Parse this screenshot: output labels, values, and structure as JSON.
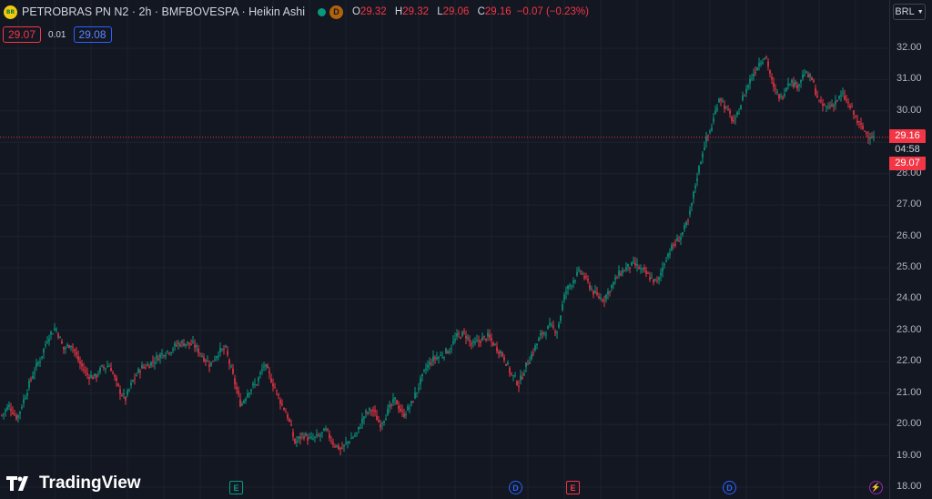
{
  "header": {
    "symbol_line": "PETROBRAS PN N2 · 2h · BMFBOVESPA · Heikin Ashi",
    "logo_text": "BR",
    "badge_letter": "D",
    "o_label": "O",
    "o_value": "29.32",
    "h_label": "H",
    "h_value": "29.32",
    "l_label": "L",
    "l_value": "29.06",
    "c_label": "C",
    "c_value": "29.16",
    "change": "−0.07 (−0.23%)"
  },
  "quote": {
    "bid": "29.07",
    "spread": "0.01",
    "ask": "29.08"
  },
  "currency": "BRL",
  "price_axis": {
    "ticks": [
      "32.00",
      "31.00",
      "30.00",
      "29.00",
      "28.00",
      "27.00",
      "26.00",
      "25.00",
      "24.00",
      "23.00",
      "22.00",
      "21.00",
      "20.00",
      "19.00",
      "18.00"
    ],
    "last_price": "29.16",
    "countdown": "04:58",
    "bid_label": "29.07"
  },
  "watermark": "TradingView",
  "events": [
    {
      "type": "E",
      "color": "#089981"
    },
    {
      "type": "D",
      "color": "#2962ff"
    },
    {
      "type": "E",
      "color": "#f23645"
    },
    {
      "type": "D",
      "color": "#2962ff"
    },
    {
      "type": "⚡",
      "color": "#9c27b0"
    }
  ],
  "colors": {
    "up": "#089981",
    "down": "#f23645",
    "background": "#131722",
    "grid": "#1e222d"
  },
  "chart_data": {
    "type": "candlestick",
    "style": "Heikin Ashi",
    "ylim": [
      18,
      32.5
    ],
    "close_path": [
      20.3,
      20.6,
      20.2,
      20.9,
      21.6,
      22.1,
      22.8,
      23.1,
      22.4,
      22.6,
      22.0,
      21.6,
      21.5,
      21.8,
      21.9,
      21.2,
      20.8,
      21.4,
      21.8,
      21.9,
      22.1,
      22.3,
      22.4,
      22.6,
      22.6,
      22.5,
      22.2,
      21.9,
      22.3,
      22.4,
      21.5,
      20.6,
      21.1,
      21.3,
      21.9,
      21.4,
      20.8,
      20.3,
      19.4,
      19.7,
      19.5,
      19.6,
      19.8,
      19.4,
      19.2,
      19.5,
      19.7,
      20.3,
      20.5,
      20.0,
      20.4,
      20.8,
      20.3,
      20.6,
      21.2,
      21.8,
      22.1,
      22.2,
      22.4,
      22.8,
      22.9,
      22.5,
      22.7,
      22.8,
      22.5,
      22.2,
      21.6,
      21.3,
      21.9,
      22.4,
      22.9,
      23.1,
      23.0,
      24.2,
      24.6,
      24.9,
      24.5,
      24.1,
      24.0,
      24.4,
      24.8,
      25.0,
      25.1,
      24.9,
      24.7,
      24.5,
      25.3,
      25.7,
      26.0,
      26.5,
      27.8,
      28.9,
      29.5,
      30.5,
      30.0,
      29.6,
      30.4,
      31.0,
      31.5,
      31.8,
      30.7,
      30.4,
      31.0,
      30.8,
      31.2,
      31.0,
      30.2,
      30.1,
      30.3,
      30.5,
      30.1,
      29.6,
      29.3,
      29.16
    ]
  }
}
